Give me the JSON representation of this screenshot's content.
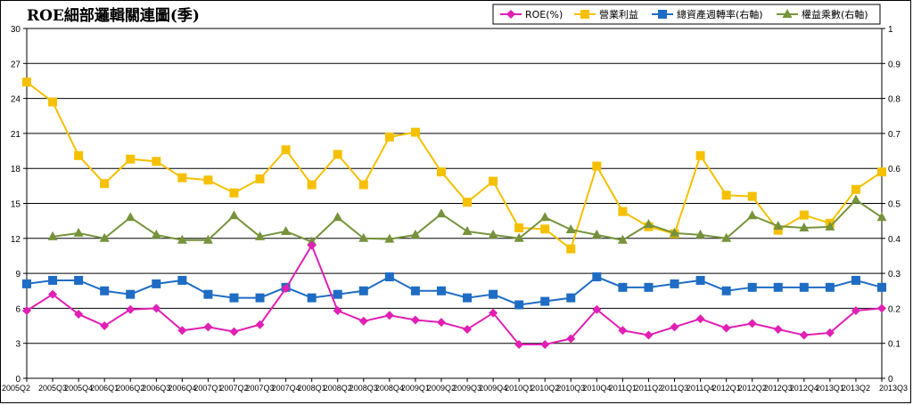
{
  "chart_data": {
    "type": "line",
    "title": "ROE細部邏輯關連圖(季)",
    "x": [
      "2005Q2",
      "2005Q3",
      "2005Q4",
      "2006Q1",
      "2006Q2",
      "2006Q3",
      "2006Q4",
      "2007Q1",
      "2007Q2",
      "2007Q3",
      "2007Q4",
      "2008Q1",
      "2008Q2",
      "2008Q3",
      "2008Q4",
      "2009Q1",
      "2009Q2",
      "2009Q3",
      "2009Q4",
      "2010Q1",
      "2010Q2",
      "2010Q3",
      "2010Q4",
      "2011Q1",
      "2011Q2",
      "2011Q3",
      "2011Q4",
      "2012Q1",
      "2012Q2",
      "2012Q3",
      "2012Q4",
      "2013Q1",
      "2013Q2",
      "2013Q3"
    ],
    "ylim_left": [
      0,
      30
    ],
    "ylim_right": [
      0,
      1
    ],
    "yticks_left": [
      "0",
      "3",
      "6",
      "9",
      "12",
      "15",
      "18",
      "21",
      "24",
      "27",
      "30"
    ],
    "yticks_right": [
      "0",
      "0.1",
      "0.2",
      "0.3",
      "0.4",
      "0.5",
      "0.6",
      "0.7",
      "0.8",
      "0.9",
      "1"
    ],
    "grid": true,
    "legend_position": "top-right",
    "series": [
      {
        "name": "ROE(%)",
        "axis": "left",
        "color": "#e11fb4",
        "marker": "diamond",
        "values": [
          5.8,
          7.2,
          5.5,
          4.5,
          5.9,
          6.0,
          4.1,
          4.4,
          4.0,
          4.6,
          7.7,
          11.4,
          5.8,
          4.9,
          5.4,
          5.0,
          4.8,
          4.2,
          5.6,
          2.9,
          2.9,
          3.4,
          5.9,
          4.1,
          3.7,
          4.4,
          5.1,
          4.3,
          4.7,
          4.2,
          3.7,
          3.9,
          5.8,
          6.0
        ]
      },
      {
        "name": "營業利益",
        "axis": "left",
        "color": "#f5c000",
        "marker": "square",
        "values": [
          25.4,
          23.7,
          19.1,
          16.7,
          18.8,
          18.6,
          17.2,
          17.0,
          15.9,
          17.1,
          19.6,
          16.6,
          19.2,
          16.6,
          20.7,
          21.1,
          17.7,
          15.1,
          16.9,
          12.9,
          12.8,
          11.1,
          18.2,
          14.3,
          13.0,
          12.4,
          19.1,
          15.7,
          15.6,
          12.7,
          14.0,
          13.3,
          16.2,
          17.7
        ]
      },
      {
        "name": "總資產週轉率(右軸)",
        "axis": "right",
        "color": "#1f6cc4",
        "marker": "square",
        "values": [
          0.27,
          0.28,
          0.28,
          0.25,
          0.24,
          0.27,
          0.28,
          0.24,
          0.23,
          0.23,
          0.26,
          0.23,
          0.24,
          0.25,
          0.29,
          0.25,
          0.25,
          0.23,
          0.24,
          0.21,
          0.22,
          0.23,
          0.29,
          0.26,
          0.26,
          0.27,
          0.28,
          0.25,
          0.26,
          0.26,
          0.26,
          0.26,
          0.28,
          0.26
        ]
      },
      {
        "name": "權益乘數(右軸)",
        "axis": "right",
        "color": "#76933c",
        "marker": "triangle",
        "values": [
          null,
          0.405,
          0.415,
          0.4,
          0.46,
          0.41,
          0.395,
          0.395,
          0.465,
          0.405,
          0.42,
          0.39,
          0.46,
          0.4,
          0.398,
          0.41,
          0.47,
          0.42,
          0.41,
          0.4,
          0.46,
          0.425,
          0.41,
          0.395,
          0.44,
          0.415,
          0.41,
          0.4,
          0.465,
          0.435,
          0.43,
          0.433,
          0.51,
          0.46
        ]
      }
    ]
  }
}
